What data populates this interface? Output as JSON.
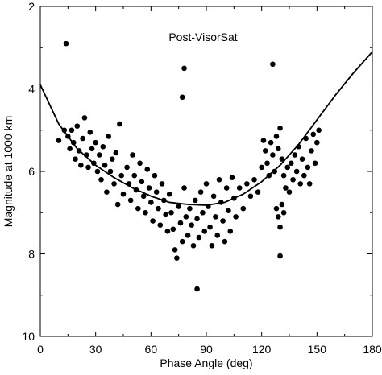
{
  "chart_data": {
    "type": "scatter",
    "title": "Post-VisorSat",
    "xlabel": "Phase Angle (deg)",
    "ylabel": "Magnitude at 1000 km",
    "xlim": [
      0,
      180
    ],
    "ylim": [
      10,
      2
    ],
    "y_inverted": true,
    "x_ticks": [
      0,
      30,
      60,
      90,
      120,
      150,
      180
    ],
    "x_tick_labels": [
      "0",
      "30",
      "60",
      "90",
      "120",
      "150",
      "180"
    ],
    "y_ticks": [
      2,
      4,
      6,
      8,
      10
    ],
    "y_tick_labels": [
      "2",
      "4",
      "6",
      "8",
      "10"
    ],
    "grid": false,
    "legend": "none",
    "marker_color": "#000000",
    "series": [
      {
        "type": "scatter",
        "points": [
          [
            14,
            2.9
          ],
          [
            78,
            3.5
          ],
          [
            126,
            3.4
          ],
          [
            77,
            4.2
          ],
          [
            85,
            8.85
          ],
          [
            130,
            8.05
          ],
          [
            10,
            5.25
          ],
          [
            13,
            5.0
          ],
          [
            15,
            5.15
          ],
          [
            16,
            5.45
          ],
          [
            17,
            5.0
          ],
          [
            18,
            5.3
          ],
          [
            19,
            5.7
          ],
          [
            20,
            4.9
          ],
          [
            21,
            5.5
          ],
          [
            22,
            5.85
          ],
          [
            23,
            5.2
          ],
          [
            24,
            4.7
          ],
          [
            25,
            5.6
          ],
          [
            26,
            5.9
          ],
          [
            27,
            5.05
          ],
          [
            28,
            5.45
          ],
          [
            29,
            5.8
          ],
          [
            30,
            5.3
          ],
          [
            31,
            6.0
          ],
          [
            32,
            5.6
          ],
          [
            33,
            6.2
          ],
          [
            34,
            5.4
          ],
          [
            35,
            5.85
          ],
          [
            36,
            6.5
          ],
          [
            37,
            5.15
          ],
          [
            38,
            6.0
          ],
          [
            39,
            5.7
          ],
          [
            40,
            6.3
          ],
          [
            41,
            5.55
          ],
          [
            42,
            6.8
          ],
          [
            43,
            4.85
          ],
          [
            44,
            6.1
          ],
          [
            45,
            6.55
          ],
          [
            47,
            5.9
          ],
          [
            48,
            6.3
          ],
          [
            49,
            6.7
          ],
          [
            50,
            5.6
          ],
          [
            51,
            6.1
          ],
          [
            52,
            6.45
          ],
          [
            53,
            6.9
          ],
          [
            54,
            5.8
          ],
          [
            55,
            6.25
          ],
          [
            56,
            6.6
          ],
          [
            57,
            7.0
          ],
          [
            58,
            5.95
          ],
          [
            59,
            6.4
          ],
          [
            60,
            6.75
          ],
          [
            61,
            7.2
          ],
          [
            62,
            6.1
          ],
          [
            63,
            6.5
          ],
          [
            64,
            6.9
          ],
          [
            65,
            7.3
          ],
          [
            66,
            6.3
          ],
          [
            67,
            6.7
          ],
          [
            68,
            7.05
          ],
          [
            69,
            7.45
          ],
          [
            70,
            6.55
          ],
          [
            71,
            7.0
          ],
          [
            72,
            7.4
          ],
          [
            73,
            7.9
          ],
          [
            74,
            8.1
          ],
          [
            75,
            6.85
          ],
          [
            76,
            7.25
          ],
          [
            77,
            7.7
          ],
          [
            78,
            6.4
          ],
          [
            79,
            7.1
          ],
          [
            80,
            7.55
          ],
          [
            81,
            6.9
          ],
          [
            82,
            7.3
          ],
          [
            83,
            7.8
          ],
          [
            84,
            6.7
          ],
          [
            85,
            7.15
          ],
          [
            86,
            7.6
          ],
          [
            87,
            6.5
          ],
          [
            88,
            7.0
          ],
          [
            89,
            7.45
          ],
          [
            90,
            6.3
          ],
          [
            91,
            6.85
          ],
          [
            92,
            7.35
          ],
          [
            93,
            7.8
          ],
          [
            94,
            6.6
          ],
          [
            95,
            7.1
          ],
          [
            96,
            7.55
          ],
          [
            97,
            6.2
          ],
          [
            98,
            6.75
          ],
          [
            99,
            7.2
          ],
          [
            100,
            7.7
          ],
          [
            101,
            6.4
          ],
          [
            102,
            6.95
          ],
          [
            103,
            7.45
          ],
          [
            104,
            6.15
          ],
          [
            105,
            6.65
          ],
          [
            106,
            7.1
          ],
          [
            108,
            6.4
          ],
          [
            110,
            6.9
          ],
          [
            112,
            6.3
          ],
          [
            114,
            6.6
          ],
          [
            116,
            6.2
          ],
          [
            118,
            6.5
          ],
          [
            120,
            5.9
          ],
          [
            121,
            5.25
          ],
          [
            122,
            5.5
          ],
          [
            123,
            5.8
          ],
          [
            124,
            6.1
          ],
          [
            125,
            5.3
          ],
          [
            126,
            5.6
          ],
          [
            127,
            6.0
          ],
          [
            128,
            5.15
          ],
          [
            129,
            5.45
          ],
          [
            130,
            4.95
          ],
          [
            131,
            5.7
          ],
          [
            132,
            6.1
          ],
          [
            133,
            6.4
          ],
          [
            134,
            5.9
          ],
          [
            128,
            6.9
          ],
          [
            129,
            7.1
          ],
          [
            130,
            7.35
          ],
          [
            131,
            6.8
          ],
          [
            132,
            7.0
          ],
          [
            135,
            6.5
          ],
          [
            136,
            5.8
          ],
          [
            137,
            6.2
          ],
          [
            138,
            5.6
          ],
          [
            139,
            6.0
          ],
          [
            140,
            5.4
          ],
          [
            141,
            6.3
          ],
          [
            142,
            5.7
          ],
          [
            143,
            6.1
          ],
          [
            144,
            5.2
          ],
          [
            145,
            5.9
          ],
          [
            146,
            6.3
          ],
          [
            147,
            5.5
          ],
          [
            148,
            5.1
          ],
          [
            149,
            5.8
          ],
          [
            150,
            5.3
          ],
          [
            151,
            5.0
          ]
        ]
      },
      {
        "type": "line",
        "name": "",
        "x": [
          0,
          10,
          20,
          30,
          40,
          50,
          60,
          70,
          80,
          90,
          100,
          110,
          120,
          130,
          140,
          150,
          160,
          170,
          180
        ],
        "y": [
          3.9,
          4.85,
          5.45,
          5.85,
          6.15,
          6.4,
          6.6,
          6.75,
          6.8,
          6.82,
          6.75,
          6.55,
          6.25,
          5.85,
          5.35,
          4.75,
          4.15,
          3.6,
          3.1
        ]
      }
    ]
  }
}
